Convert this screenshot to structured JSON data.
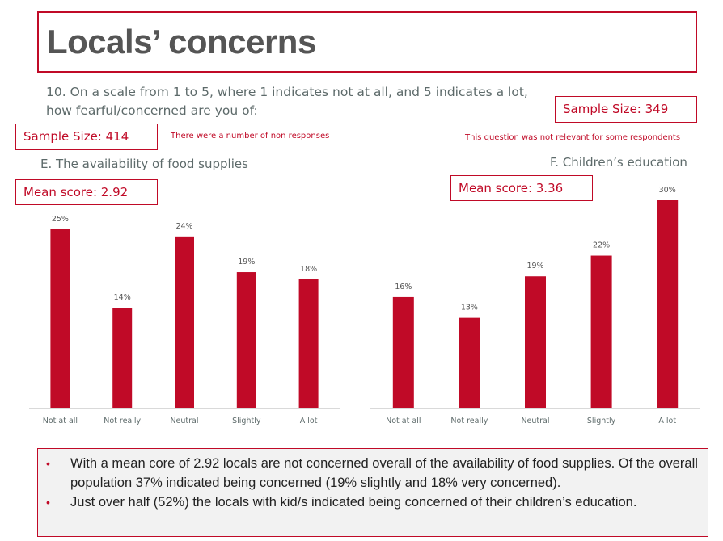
{
  "title": "Locals’ concerns",
  "question": {
    "line1": "10. On a scale from 1 to 5, where 1 indicates not at all, and 5 indicates a lot,",
    "line2": "how fearful/concerned are you of:"
  },
  "left_panel": {
    "sample_size": "Sample Size: 414",
    "note": "There were a number of non responses",
    "subtitle": "E. The availability of food supplies",
    "mean_score": "Mean score: 2.92"
  },
  "right_panel": {
    "sample_size": "Sample Size: 349",
    "note": "This question was not relevant for some respondents",
    "subtitle": "F. Children’s education",
    "mean_score": "Mean score: 3.36"
  },
  "colors": {
    "accent": "#c00a27",
    "text_gray": "#5d6a6a",
    "summary_bg": "#f2f2f2"
  },
  "chart_data": [
    {
      "type": "bar",
      "title": "E. The availability of food supplies",
      "categories": [
        "Not at all",
        "Not really",
        "Neutral",
        "Slightly",
        "A lot"
      ],
      "values": [
        25,
        14,
        24,
        19,
        18
      ],
      "value_labels": [
        "25%",
        "14%",
        "24%",
        "19%",
        "18%"
      ],
      "unit": "%",
      "xlabel": "",
      "ylabel": "",
      "ylim": [
        0,
        25
      ],
      "grid": false,
      "legend": "none"
    },
    {
      "type": "bar",
      "title": "F. Children’s education",
      "categories": [
        "Not at all",
        "Not really",
        "Neutral",
        "Slightly",
        "A lot"
      ],
      "values": [
        16,
        13,
        19,
        22,
        30
      ],
      "value_labels": [
        "16%",
        "13%",
        "19%",
        "22%",
        "30%"
      ],
      "unit": "%",
      "xlabel": "",
      "ylabel": "",
      "ylim": [
        0,
        30
      ],
      "grid": false,
      "legend": "none"
    }
  ],
  "summary": {
    "bullets": [
      "With a mean core of 2.92 locals are not concerned overall of the availability of food supplies. Of the overall population 37% indicated being concerned (19% slightly and 18% very concerned).",
      "Just over half (52%) the locals with kid/s indicated being concerned of their children’s education."
    ],
    "bullet_glyph": "•"
  }
}
